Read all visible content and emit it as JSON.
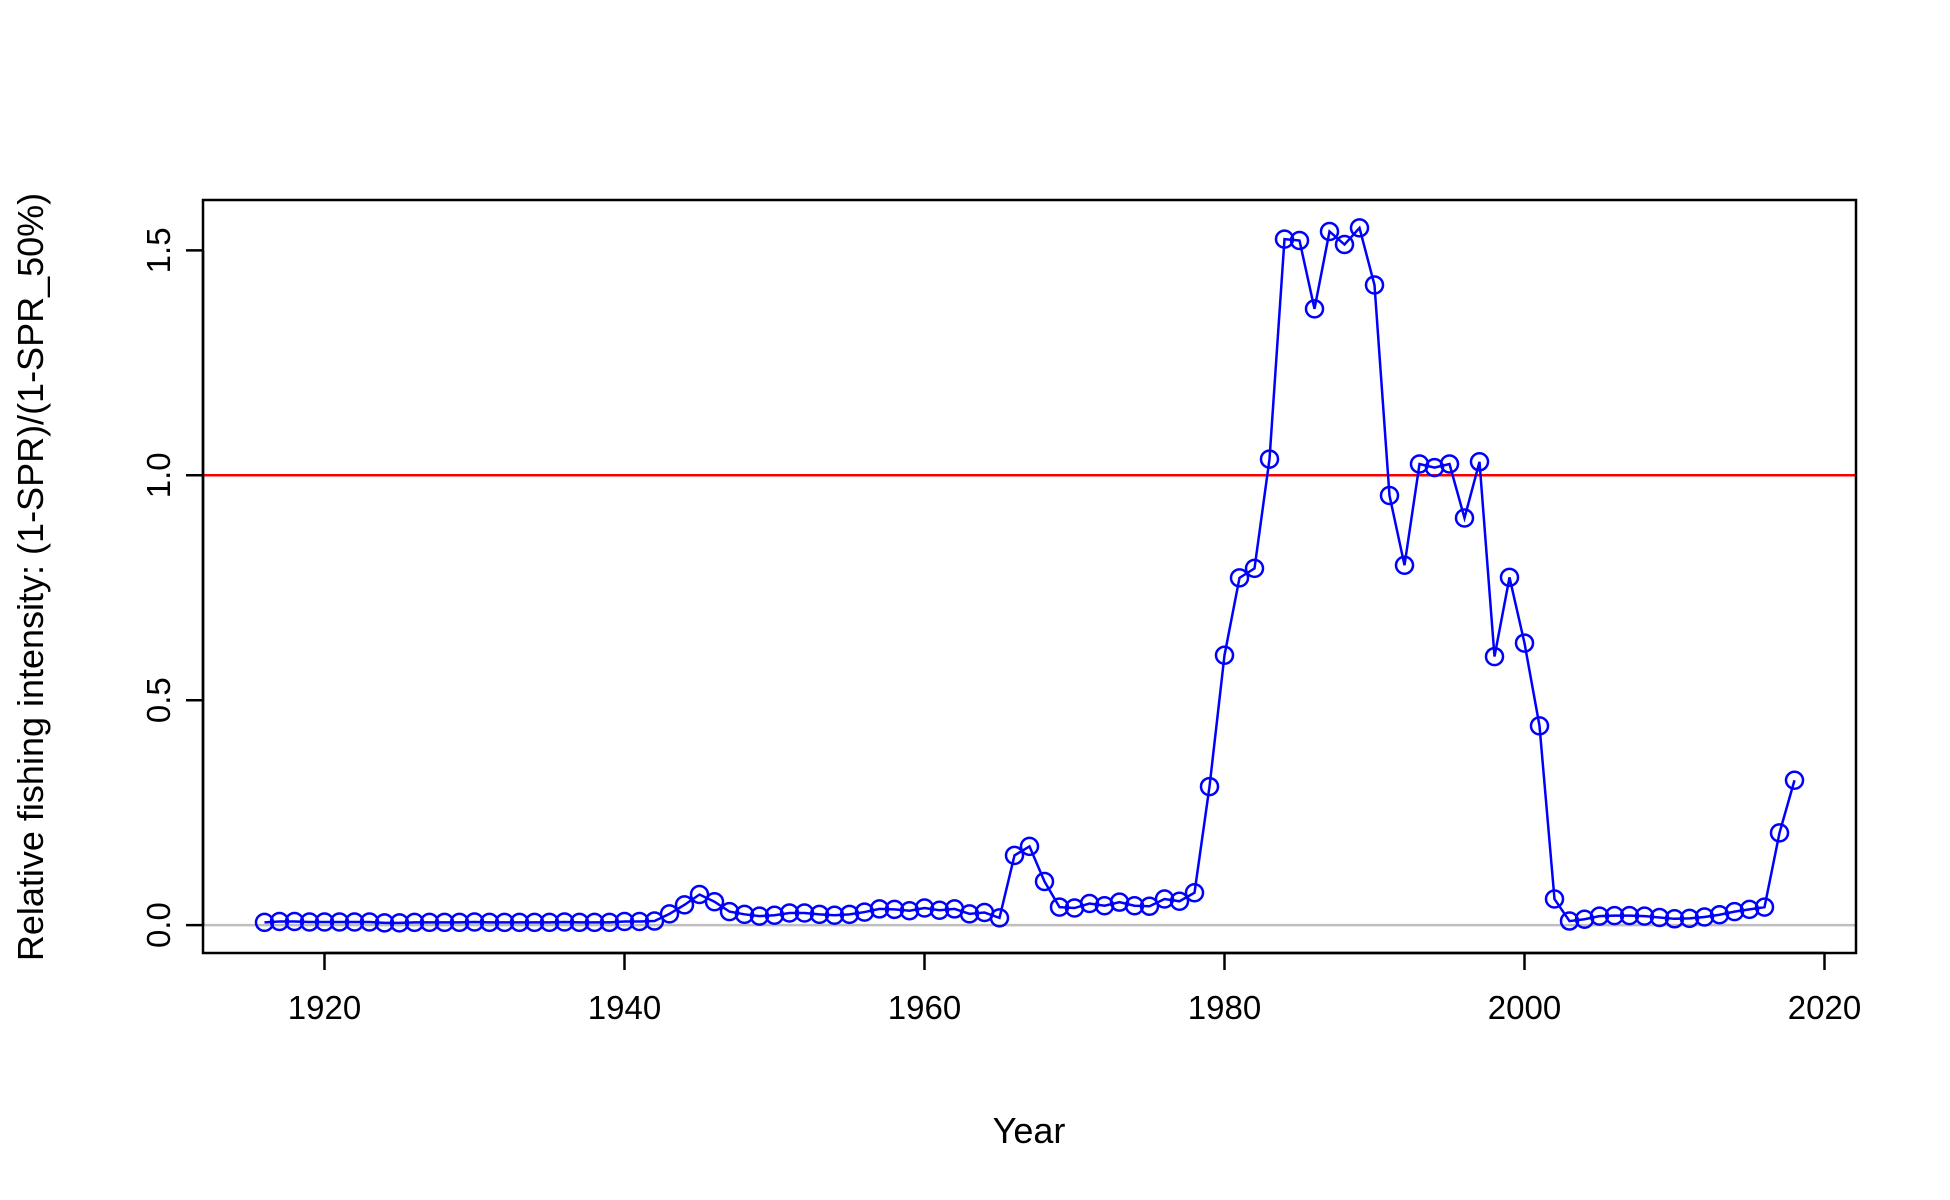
{
  "chart_data": {
    "type": "line",
    "title": "",
    "xlabel": "Year",
    "ylabel": "Relative fishing intensity: (1-SPR)/(1-SPR_50%)",
    "xlim": [
      1911.9,
      2022.1
    ],
    "ylim": [
      -0.062,
      1.612
    ],
    "xticks": [
      "1920",
      "1940",
      "1960",
      "1980",
      "2000",
      "2020"
    ],
    "yticks": [
      "0.0",
      "0.5",
      "1.0",
      "1.5"
    ],
    "grid": false,
    "reference_lines": [
      {
        "y": 1.0,
        "color": "#ff0000"
      },
      {
        "y": 0.0,
        "color": "#bebebe"
      }
    ],
    "series_color": "#0000ff",
    "x": [
      1916,
      1917,
      1918,
      1919,
      1920,
      1921,
      1922,
      1923,
      1924,
      1925,
      1926,
      1927,
      1928,
      1929,
      1930,
      1931,
      1932,
      1933,
      1934,
      1935,
      1936,
      1937,
      1938,
      1939,
      1940,
      1941,
      1942,
      1943,
      1944,
      1945,
      1946,
      1947,
      1948,
      1949,
      1950,
      1951,
      1952,
      1953,
      1954,
      1955,
      1956,
      1957,
      1958,
      1959,
      1960,
      1961,
      1962,
      1963,
      1964,
      1965,
      1966,
      1967,
      1968,
      1969,
      1970,
      1971,
      1972,
      1973,
      1974,
      1975,
      1976,
      1977,
      1978,
      1979,
      1980,
      1981,
      1982,
      1983,
      1984,
      1985,
      1986,
      1987,
      1988,
      1989,
      1990,
      1991,
      1992,
      1993,
      1994,
      1995,
      1996,
      1997,
      1998,
      1999,
      2000,
      2001,
      2002,
      2003,
      2004,
      2005,
      2006,
      2007,
      2008,
      2009,
      2010,
      2011,
      2012,
      2013,
      2014,
      2015,
      2016,
      2017,
      2018
    ],
    "series": [
      {
        "values": [
          0.006,
          0.008,
          0.008,
          0.007,
          0.007,
          0.007,
          0.007,
          0.007,
          0.005,
          0.005,
          0.006,
          0.006,
          0.006,
          0.006,
          0.007,
          0.006,
          0.006,
          0.006,
          0.006,
          0.006,
          0.007,
          0.006,
          0.006,
          0.006,
          0.008,
          0.008,
          0.009,
          0.025,
          0.045,
          0.068,
          0.052,
          0.03,
          0.024,
          0.02,
          0.022,
          0.027,
          0.027,
          0.024,
          0.022,
          0.024,
          0.029,
          0.036,
          0.035,
          0.032,
          0.038,
          0.033,
          0.036,
          0.025,
          0.028,
          0.016,
          0.155,
          0.175,
          0.097,
          0.04,
          0.038,
          0.048,
          0.043,
          0.051,
          0.043,
          0.042,
          0.058,
          0.053,
          0.072,
          0.308,
          0.6,
          0.772,
          0.793,
          1.036,
          1.525,
          1.522,
          1.37,
          1.542,
          1.513,
          1.55,
          1.423,
          0.955,
          0.8,
          1.025,
          1.017,
          1.025,
          0.905,
          1.03,
          0.597,
          0.773,
          0.627,
          0.443,
          0.058,
          0.009,
          0.013,
          0.02,
          0.021,
          0.021,
          0.02,
          0.017,
          0.014,
          0.015,
          0.018,
          0.023,
          0.03,
          0.035,
          0.04,
          0.205,
          0.322
        ]
      }
    ]
  }
}
